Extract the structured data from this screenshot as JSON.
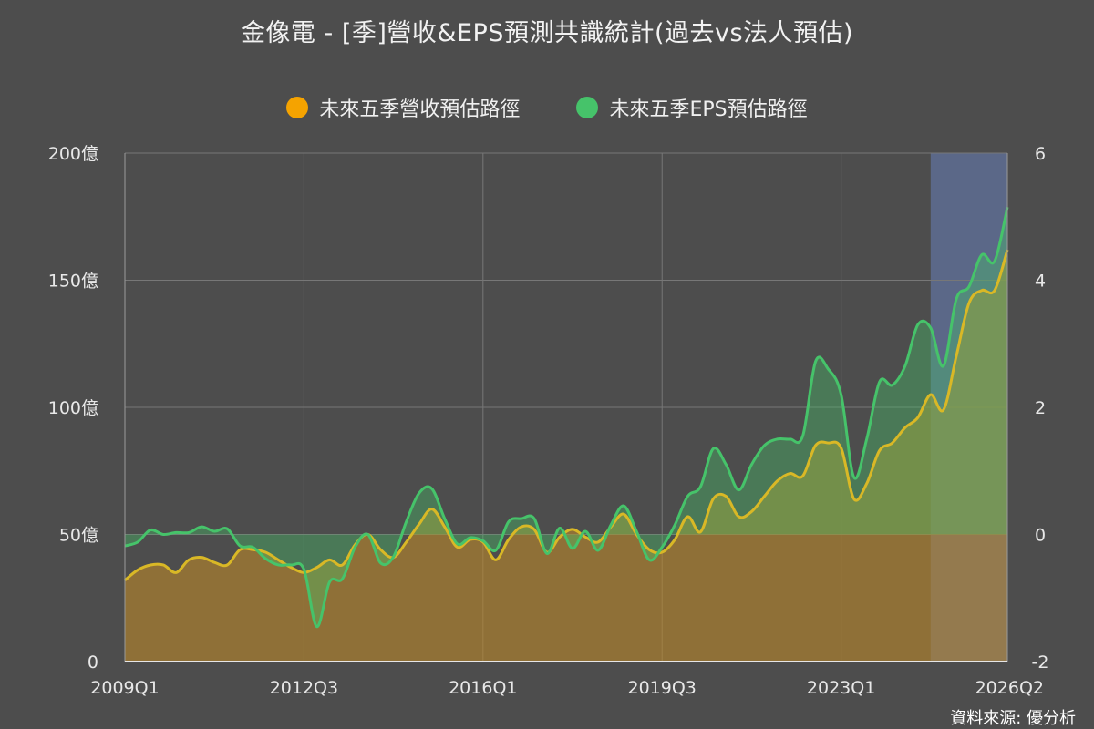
{
  "title": "金像電 - [季]營收&EPS預測共識統計(過去vs法人預估)",
  "source": "資料來源: 優分析",
  "legend": [
    {
      "label": "未來五季營收預估路徑",
      "color": "#f5a300"
    },
    {
      "label": "未來五季EPS預估路徑",
      "color": "#46c36a"
    }
  ],
  "chart_data": {
    "type": "area",
    "x_ticks": [
      "2009Q1",
      "2012Q3",
      "2016Q1",
      "2019Q3",
      "2023Q1",
      "2026Q2"
    ],
    "x_range": [
      2009.0,
      2026.25
    ],
    "forecast_start": 2024.75,
    "y_left": {
      "range": [
        0,
        200
      ],
      "ticks": [
        "0",
        "50億",
        "100億",
        "150億",
        "200億"
      ]
    },
    "y_right": {
      "range": [
        -2,
        6
      ],
      "ticks": [
        "-2",
        "0",
        "2",
        "4",
        "6"
      ]
    },
    "grid": true,
    "legend_position": "top-center",
    "series": [
      {
        "name": "未來五季營收預估路徑",
        "axis": "left",
        "unit": "億",
        "color": "#d9b826",
        "points": [
          [
            2009.0,
            32
          ],
          [
            2009.25,
            36
          ],
          [
            2009.5,
            38
          ],
          [
            2009.75,
            38
          ],
          [
            2010.0,
            35
          ],
          [
            2010.25,
            40
          ],
          [
            2010.5,
            41
          ],
          [
            2010.75,
            39
          ],
          [
            2011.0,
            38
          ],
          [
            2011.25,
            44
          ],
          [
            2011.5,
            44
          ],
          [
            2011.75,
            43
          ],
          [
            2012.0,
            40
          ],
          [
            2012.25,
            37
          ],
          [
            2012.5,
            35
          ],
          [
            2012.75,
            37
          ],
          [
            2013.0,
            40
          ],
          [
            2013.25,
            38
          ],
          [
            2013.5,
            46
          ],
          [
            2013.75,
            50
          ],
          [
            2014.0,
            44
          ],
          [
            2014.25,
            41
          ],
          [
            2014.5,
            47
          ],
          [
            2014.75,
            54
          ],
          [
            2015.0,
            60
          ],
          [
            2015.25,
            53
          ],
          [
            2015.5,
            45
          ],
          [
            2015.75,
            48
          ],
          [
            2016.0,
            47
          ],
          [
            2016.25,
            40
          ],
          [
            2016.5,
            48
          ],
          [
            2016.75,
            53
          ],
          [
            2017.0,
            52
          ],
          [
            2017.25,
            43
          ],
          [
            2017.5,
            49
          ],
          [
            2017.75,
            52
          ],
          [
            2018.0,
            49
          ],
          [
            2018.25,
            47
          ],
          [
            2018.5,
            53
          ],
          [
            2018.75,
            58
          ],
          [
            2019.0,
            50
          ],
          [
            2019.25,
            44
          ],
          [
            2019.5,
            43
          ],
          [
            2019.75,
            48
          ],
          [
            2020.0,
            57
          ],
          [
            2020.25,
            51
          ],
          [
            2020.5,
            64
          ],
          [
            2020.75,
            65
          ],
          [
            2021.0,
            57
          ],
          [
            2021.25,
            59
          ],
          [
            2021.5,
            65
          ],
          [
            2021.75,
            71
          ],
          [
            2022.0,
            74
          ],
          [
            2022.25,
            73
          ],
          [
            2022.5,
            85
          ],
          [
            2022.75,
            86
          ],
          [
            2023.0,
            84
          ],
          [
            2023.25,
            64
          ],
          [
            2023.5,
            70
          ],
          [
            2023.75,
            83
          ],
          [
            2024.0,
            86
          ],
          [
            2024.25,
            92
          ],
          [
            2024.5,
            96
          ],
          [
            2024.75,
            105
          ],
          [
            2025.0,
            99
          ],
          [
            2025.25,
            120
          ],
          [
            2025.5,
            141
          ],
          [
            2025.75,
            146
          ],
          [
            2026.0,
            146
          ],
          [
            2026.25,
            162
          ]
        ]
      },
      {
        "name": "未來五季EPS預估路徑",
        "axis": "right",
        "unit": "元",
        "color": "#46c36a",
        "points": [
          [
            2009.0,
            -0.18
          ],
          [
            2009.25,
            -0.12
          ],
          [
            2009.5,
            0.07
          ],
          [
            2009.75,
            0.0
          ],
          [
            2010.0,
            0.03
          ],
          [
            2010.25,
            0.03
          ],
          [
            2010.5,
            0.12
          ],
          [
            2010.75,
            0.05
          ],
          [
            2011.0,
            0.09
          ],
          [
            2011.25,
            -0.18
          ],
          [
            2011.5,
            -0.2
          ],
          [
            2011.75,
            -0.38
          ],
          [
            2012.0,
            -0.48
          ],
          [
            2012.25,
            -0.48
          ],
          [
            2012.5,
            -0.55
          ],
          [
            2012.75,
            -1.45
          ],
          [
            2013.0,
            -0.75
          ],
          [
            2013.25,
            -0.7
          ],
          [
            2013.5,
            -0.2
          ],
          [
            2013.75,
            0.0
          ],
          [
            2014.0,
            -0.45
          ],
          [
            2014.25,
            -0.35
          ],
          [
            2014.5,
            0.2
          ],
          [
            2014.75,
            0.65
          ],
          [
            2015.0,
            0.72
          ],
          [
            2015.25,
            0.25
          ],
          [
            2015.5,
            -0.15
          ],
          [
            2015.75,
            -0.05
          ],
          [
            2016.0,
            -0.1
          ],
          [
            2016.25,
            -0.25
          ],
          [
            2016.5,
            0.2
          ],
          [
            2016.75,
            0.25
          ],
          [
            2017.0,
            0.25
          ],
          [
            2017.25,
            -0.3
          ],
          [
            2017.5,
            0.1
          ],
          [
            2017.75,
            -0.22
          ],
          [
            2018.0,
            0.05
          ],
          [
            2018.25,
            -0.25
          ],
          [
            2018.5,
            0.15
          ],
          [
            2018.75,
            0.45
          ],
          [
            2019.0,
            0.05
          ],
          [
            2019.25,
            -0.4
          ],
          [
            2019.5,
            -0.2
          ],
          [
            2019.75,
            0.15
          ],
          [
            2020.0,
            0.6
          ],
          [
            2020.25,
            0.75
          ],
          [
            2020.5,
            1.35
          ],
          [
            2020.75,
            1.1
          ],
          [
            2021.0,
            0.7
          ],
          [
            2021.25,
            1.1
          ],
          [
            2021.5,
            1.4
          ],
          [
            2021.75,
            1.5
          ],
          [
            2022.0,
            1.5
          ],
          [
            2022.25,
            1.55
          ],
          [
            2022.5,
            2.72
          ],
          [
            2022.75,
            2.6
          ],
          [
            2023.0,
            2.2
          ],
          [
            2023.25,
            0.9
          ],
          [
            2023.5,
            1.5
          ],
          [
            2023.75,
            2.4
          ],
          [
            2024.0,
            2.35
          ],
          [
            2024.25,
            2.65
          ],
          [
            2024.5,
            3.3
          ],
          [
            2024.75,
            3.25
          ],
          [
            2025.0,
            2.65
          ],
          [
            2025.25,
            3.7
          ],
          [
            2025.5,
            3.9
          ],
          [
            2025.75,
            4.4
          ],
          [
            2026.0,
            4.3
          ],
          [
            2026.25,
            5.15
          ]
        ]
      }
    ]
  }
}
